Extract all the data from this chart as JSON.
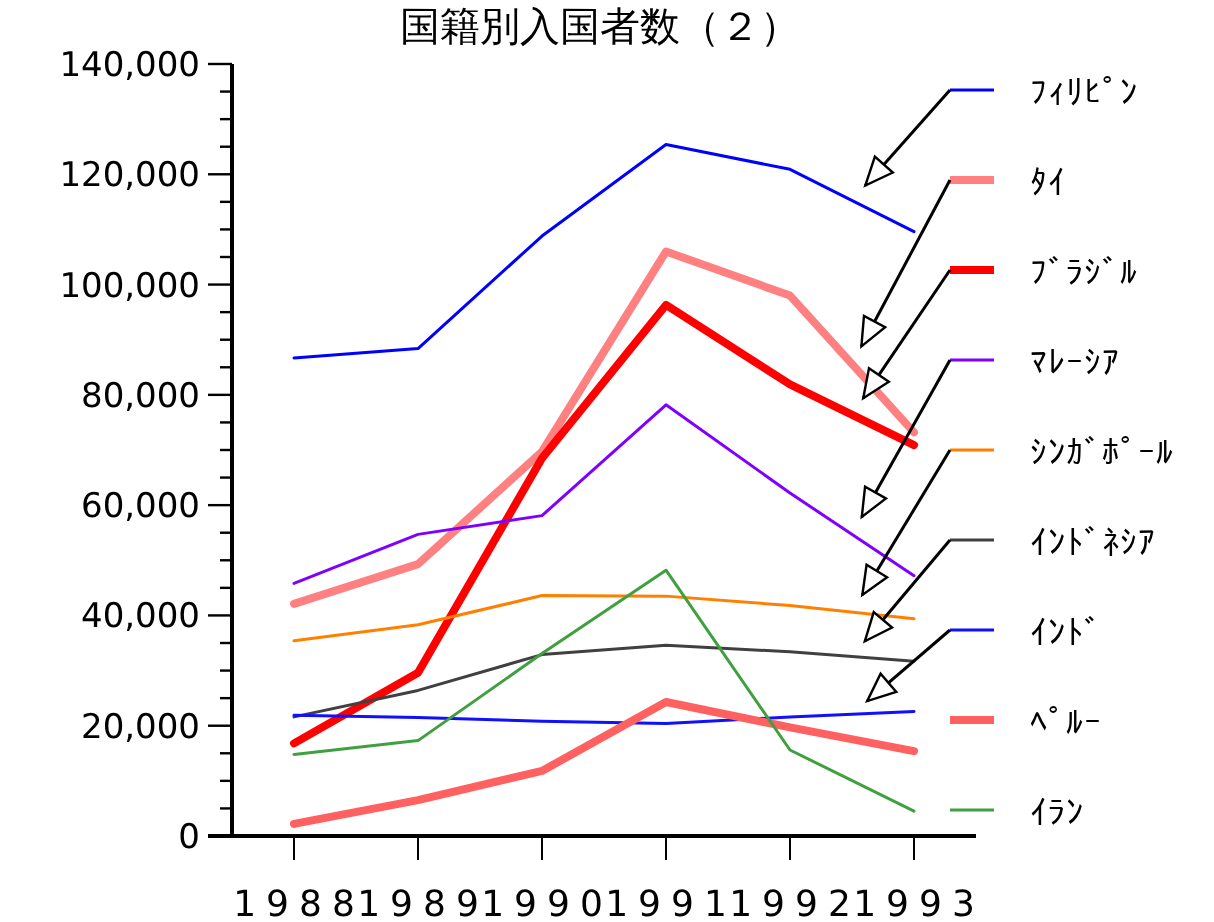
{
  "chart_data": {
    "type": "line",
    "title": "国籍別入国者数（２）",
    "categories": [
      "1988",
      "1989",
      "1990",
      "1991",
      "1992",
      "1993"
    ],
    "series": [
      {
        "name": "ﾌｨﾘﾋﾟﾝ",
        "color": "#0000ff",
        "values": [
          86700,
          88400,
          108800,
          125400,
          120900,
          109600
        ]
      },
      {
        "name": "ﾀｲ",
        "color": "#ff8080",
        "values": [
          42100,
          49300,
          69700,
          106000,
          98000,
          73200
        ]
      },
      {
        "name": "ﾌﾞﾗｼﾞﾙ",
        "color": "#ff0000",
        "values": [
          16800,
          29600,
          68500,
          96300,
          81900,
          70900
        ]
      },
      {
        "name": "ﾏﾚｰｼｱ",
        "color": "#8000ff",
        "values": [
          45800,
          54700,
          58100,
          78200,
          62200,
          47200
        ]
      },
      {
        "name": "ｼﾝｶﾞﾎﾟｰﾙ",
        "color": "#ff8000",
        "values": [
          35400,
          38300,
          43600,
          43500,
          41800,
          39400
        ]
      },
      {
        "name": "ｲﾝﾄﾞﾈｼｱ",
        "color": "#404040",
        "values": [
          21600,
          26400,
          32900,
          34600,
          33400,
          31700
        ]
      },
      {
        "name": "ｲﾝﾄﾞ",
        "color": "#1010ff",
        "values": [
          21900,
          21500,
          20800,
          20400,
          21600,
          22600
        ]
      },
      {
        "name": "ﾍﾟﾙｰ",
        "color": "#ff6060",
        "values": [
          2200,
          6500,
          11800,
          24300,
          19700,
          15400
        ]
      },
      {
        "name": "ｲﾗﾝ",
        "color": "#40a040",
        "values": [
          14800,
          17300,
          33100,
          48200,
          15600,
          4500
        ]
      }
    ],
    "ylim": [
      0,
      140000
    ],
    "yticks": [
      {
        "value": 0,
        "label": "0"
      },
      {
        "value": 5000,
        "label": null
      },
      {
        "value": 10000,
        "label": null
      },
      {
        "value": 15000,
        "label": null
      },
      {
        "value": 20000,
        "label": "20,000"
      },
      {
        "value": 25000,
        "label": null
      },
      {
        "value": 30000,
        "label": null
      },
      {
        "value": 35000,
        "label": null
      },
      {
        "value": 40000,
        "label": "40,000"
      },
      {
        "value": 45000,
        "label": null
      },
      {
        "value": 50000,
        "label": null
      },
      {
        "value": 55000,
        "label": null
      },
      {
        "value": 60000,
        "label": "60,000"
      },
      {
        "value": 65000,
        "label": null
      },
      {
        "value": 70000,
        "label": null
      },
      {
        "value": 75000,
        "label": null
      },
      {
        "value": 80000,
        "label": "80,000"
      },
      {
        "value": 85000,
        "label": null
      },
      {
        "value": 90000,
        "label": null
      },
      {
        "value": 95000,
        "label": null
      },
      {
        "value": 100000,
        "label": "100,000"
      },
      {
        "value": 105000,
        "label": null
      },
      {
        "value": 110000,
        "label": null
      },
      {
        "value": 115000,
        "label": null
      },
      {
        "value": 120000,
        "label": "120,000"
      },
      {
        "value": 125000,
        "label": null
      },
      {
        "value": 130000,
        "label": null
      },
      {
        "value": 135000,
        "label": null
      },
      {
        "value": 140000,
        "label": "140,000"
      }
    ],
    "legend": "right"
  }
}
